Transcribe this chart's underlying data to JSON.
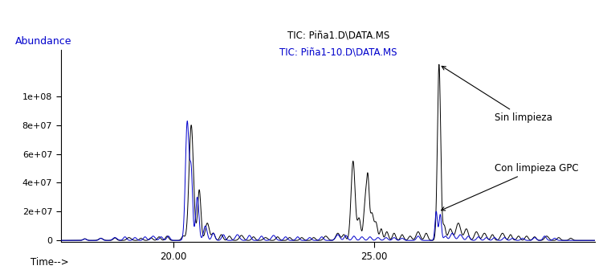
{
  "title_line1": "TIC: Piña1.D\\DATA.MS",
  "title_line2": "TIC: Piña1-10.D\\DATA.MS",
  "title_line2_color": "#0000cc",
  "title_line1_color": "#000000",
  "xlabel": "Time-->",
  "ylabel": "Abundance",
  "ylabel_color": "#0000cc",
  "xlim": [
    17.2,
    30.5
  ],
  "ylim": [
    -1000000.0,
    132000000.0
  ],
  "yticks": [
    0,
    20000000.0,
    40000000.0,
    60000000.0,
    80000000.0,
    100000000.0
  ],
  "ytick_labels": [
    "0",
    "2e+07",
    "4e+07",
    "6e+07",
    "8e+07",
    "1e+08"
  ],
  "xticks": [
    20.0,
    25.0
  ],
  "annotation1": "Sin limpieza",
  "annotation2": "Con limpieza GPC",
  "line1_color": "#000000",
  "line2_color": "#0000cc",
  "bg_color": "#ffffff"
}
